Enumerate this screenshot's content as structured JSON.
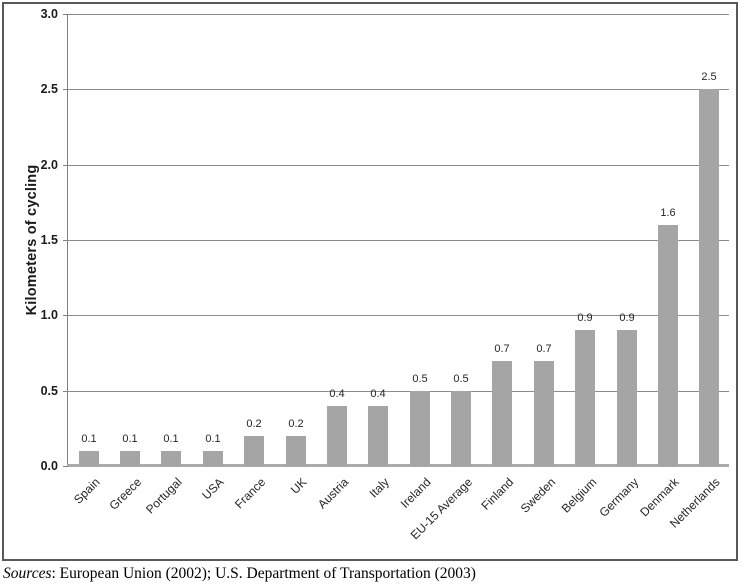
{
  "chart_data": {
    "type": "bar",
    "title": "",
    "xlabel": "",
    "ylabel": "Kilometers of cycling",
    "ylim": [
      0,
      3.0
    ],
    "ytick_labels": [
      "0.0",
      "0.5",
      "1.0",
      "1.5",
      "2.0",
      "2.5",
      "3.0"
    ],
    "grid": "horizontal gridlines at every 0.5",
    "legend": "none",
    "categories": [
      "Spain",
      "Greece",
      "Portugal",
      "USA",
      "France",
      "UK",
      "Austria",
      "Italy",
      "Ireland",
      "EU-15 Average",
      "Finland",
      "Sweden",
      "Belgium",
      "Germany",
      "Denmark",
      "Netherlands"
    ],
    "values": [
      0.1,
      0.1,
      0.1,
      0.1,
      0.2,
      0.2,
      0.4,
      0.4,
      0.5,
      0.5,
      0.7,
      0.7,
      0.9,
      0.9,
      1.6,
      2.5
    ],
    "value_labels": [
      "0.1",
      "0.1",
      "0.1",
      "0.1",
      "0.2",
      "0.2",
      "0.4",
      "0.4",
      "0.5",
      "0.5",
      "0.7",
      "0.7",
      "0.9",
      "0.9",
      "1.6",
      "2.5"
    ]
  },
  "colors": {
    "bar": "#A5A5A5",
    "gridline": "#8C8C8C",
    "axis_line": "#808080",
    "baseline": "#ABABAB",
    "outer_border": "#595959"
  },
  "source_note": {
    "prefix_italic": "Sources",
    "text": ": European Union (2002); U.S. Department of Transportation (2003)"
  }
}
